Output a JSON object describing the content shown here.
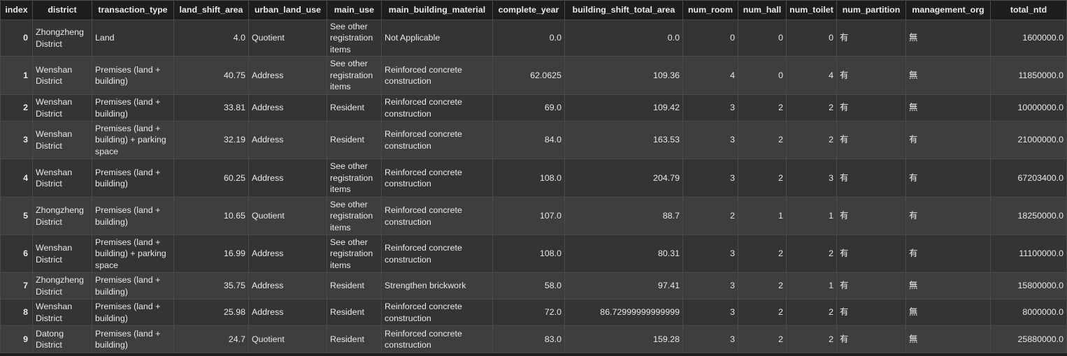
{
  "table": {
    "columns": [
      {
        "key": "index",
        "label": "index"
      },
      {
        "key": "district",
        "label": "district"
      },
      {
        "key": "transaction_type",
        "label": "transaction_type"
      },
      {
        "key": "land_shift_area",
        "label": "land_shift_area"
      },
      {
        "key": "urban_land_use",
        "label": "urban_land_use"
      },
      {
        "key": "main_use",
        "label": "main_use"
      },
      {
        "key": "main_building_material",
        "label": "main_building_material"
      },
      {
        "key": "complete_year",
        "label": "complete_year"
      },
      {
        "key": "building_shift_total_area",
        "label": "building_shift_total_area"
      },
      {
        "key": "num_room",
        "label": "num_room"
      },
      {
        "key": "num_hall",
        "label": "num_hall"
      },
      {
        "key": "num_toilet",
        "label": "num_toilet"
      },
      {
        "key": "num_partition",
        "label": "num_partition"
      },
      {
        "key": "management_org",
        "label": "management_org"
      },
      {
        "key": "total_ntd",
        "label": "total_ntd"
      }
    ],
    "rows": [
      {
        "index": "0",
        "district": "Zhongzheng District",
        "transaction_type": "Land",
        "land_shift_area": "4.0",
        "urban_land_use": "Quotient",
        "main_use": "See other registration items",
        "main_building_material": "Not Applicable",
        "complete_year": "0.0",
        "building_shift_total_area": "0.0",
        "num_room": "0",
        "num_hall": "0",
        "num_toilet": "0",
        "num_partition": "有",
        "management_org": "無",
        "total_ntd": "1600000.0"
      },
      {
        "index": "1",
        "district": "Wenshan District",
        "transaction_type": "Premises (land + building)",
        "land_shift_area": "40.75",
        "urban_land_use": "Address",
        "main_use": "See other registration items",
        "main_building_material": "Reinforced concrete construction",
        "complete_year": "62.0625",
        "building_shift_total_area": "109.36",
        "num_room": "4",
        "num_hall": "0",
        "num_toilet": "4",
        "num_partition": "有",
        "management_org": "無",
        "total_ntd": "11850000.0"
      },
      {
        "index": "2",
        "district": "Wenshan District",
        "transaction_type": "Premises (land + building)",
        "land_shift_area": "33.81",
        "urban_land_use": "Address",
        "main_use": "Resident",
        "main_building_material": "Reinforced concrete construction",
        "complete_year": "69.0",
        "building_shift_total_area": "109.42",
        "num_room": "3",
        "num_hall": "2",
        "num_toilet": "2",
        "num_partition": "有",
        "management_org": "無",
        "total_ntd": "10000000.0"
      },
      {
        "index": "3",
        "district": "Wenshan District",
        "transaction_type": "Premises (land + building) + parking space",
        "land_shift_area": "32.19",
        "urban_land_use": "Address",
        "main_use": "Resident",
        "main_building_material": "Reinforced concrete construction",
        "complete_year": "84.0",
        "building_shift_total_area": "163.53",
        "num_room": "3",
        "num_hall": "2",
        "num_toilet": "2",
        "num_partition": "有",
        "management_org": "有",
        "total_ntd": "21000000.0"
      },
      {
        "index": "4",
        "district": "Wenshan District",
        "transaction_type": "Premises (land + building)",
        "land_shift_area": "60.25",
        "urban_land_use": "Address",
        "main_use": "See other registration items",
        "main_building_material": "Reinforced concrete construction",
        "complete_year": "108.0",
        "building_shift_total_area": "204.79",
        "num_room": "3",
        "num_hall": "2",
        "num_toilet": "3",
        "num_partition": "有",
        "management_org": "有",
        "total_ntd": "67203400.0"
      },
      {
        "index": "5",
        "district": "Zhongzheng District",
        "transaction_type": "Premises (land + building)",
        "land_shift_area": "10.65",
        "urban_land_use": "Quotient",
        "main_use": "See other registration items",
        "main_building_material": "Reinforced concrete construction",
        "complete_year": "107.0",
        "building_shift_total_area": "88.7",
        "num_room": "2",
        "num_hall": "1",
        "num_toilet": "1",
        "num_partition": "有",
        "management_org": "有",
        "total_ntd": "18250000.0"
      },
      {
        "index": "6",
        "district": "Wenshan District",
        "transaction_type": "Premises (land + building) + parking space",
        "land_shift_area": "16.99",
        "urban_land_use": "Address",
        "main_use": "See other registration items",
        "main_building_material": "Reinforced concrete construction",
        "complete_year": "108.0",
        "building_shift_total_area": "80.31",
        "num_room": "3",
        "num_hall": "2",
        "num_toilet": "2",
        "num_partition": "有",
        "management_org": "有",
        "total_ntd": "11100000.0"
      },
      {
        "index": "7",
        "district": "Zhongzheng District",
        "transaction_type": "Premises (land + building)",
        "land_shift_area": "35.75",
        "urban_land_use": "Address",
        "main_use": "Resident",
        "main_building_material": "Strengthen brickwork",
        "complete_year": "58.0",
        "building_shift_total_area": "97.41",
        "num_room": "3",
        "num_hall": "2",
        "num_toilet": "1",
        "num_partition": "有",
        "management_org": "無",
        "total_ntd": "15800000.0"
      },
      {
        "index": "8",
        "district": "Wenshan District",
        "transaction_type": "Premises (land + building)",
        "land_shift_area": "25.98",
        "urban_land_use": "Address",
        "main_use": "Resident",
        "main_building_material": "Reinforced concrete construction",
        "complete_year": "72.0",
        "building_shift_total_area": "86.72999999999999",
        "num_room": "3",
        "num_hall": "2",
        "num_toilet": "2",
        "num_partition": "有",
        "management_org": "無",
        "total_ntd": "8000000.0"
      },
      {
        "index": "9",
        "district": "Datong District",
        "transaction_type": "Premises (land + building)",
        "land_shift_area": "24.7",
        "urban_land_use": "Quotient",
        "main_use": "Resident",
        "main_building_material": "Reinforced concrete construction",
        "complete_year": "83.0",
        "building_shift_total_area": "159.28",
        "num_room": "3",
        "num_hall": "2",
        "num_toilet": "2",
        "num_partition": "有",
        "management_org": "無",
        "total_ntd": "25880000.0"
      }
    ]
  }
}
